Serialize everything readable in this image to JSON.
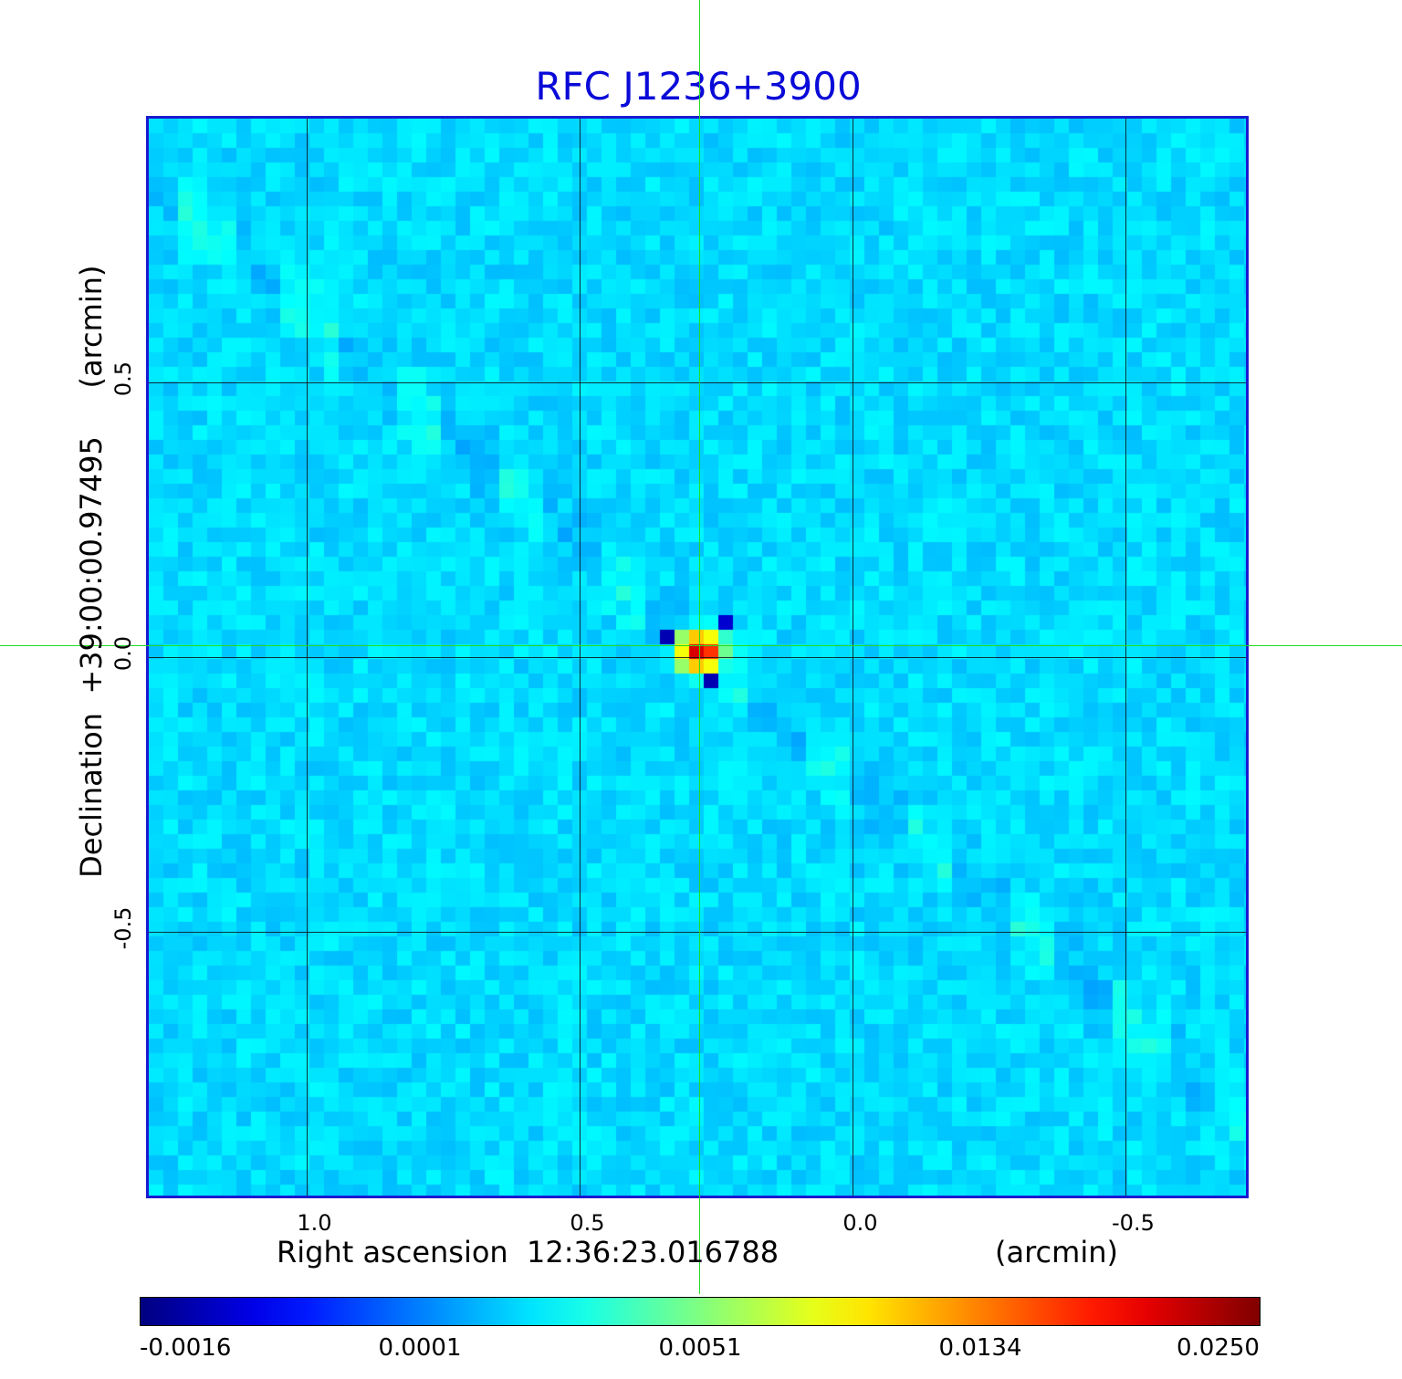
{
  "chart_data": {
    "type": "heatmap",
    "title": "RFC J1236+3900",
    "xlabel": "Right ascension  12:36:23.016788",
    "xlabel_unit": "(arcmin)",
    "ylabel": "Declination  +39:00:00.97495",
    "ylabel_unit": "(arcmin)",
    "x_ticks": [
      "1.0",
      "0.5",
      "0.0",
      "-0.5"
    ],
    "x_tick_values": [
      1.0,
      0.5,
      0.0,
      -0.5
    ],
    "y_ticks": [
      "0.5",
      "0.0",
      "-0.5"
    ],
    "y_tick_values": [
      0.5,
      0.0,
      -0.5
    ],
    "xlim": [
      1.29,
      -0.72
    ],
    "ylim": [
      -0.98,
      0.98
    ],
    "grid": true,
    "colormap": "jet",
    "colorbar_ticks": [
      "-0.0016",
      "0.0001",
      "0.0051",
      "0.0134",
      "0.0250"
    ],
    "colorbar_values": [
      -0.0016,
      0.0001,
      0.0051,
      0.0134,
      0.025
    ],
    "peak": {
      "ra_offset": 0.28,
      "dec_offset": 0.01,
      "value": 0.025
    },
    "crosshair": {
      "ra_offset": 0.28,
      "dec_offset": 0.02
    },
    "crosshair_color": "#22dd22",
    "frame_color": "#1a1ad0",
    "title_color": "#0a0ad8"
  }
}
